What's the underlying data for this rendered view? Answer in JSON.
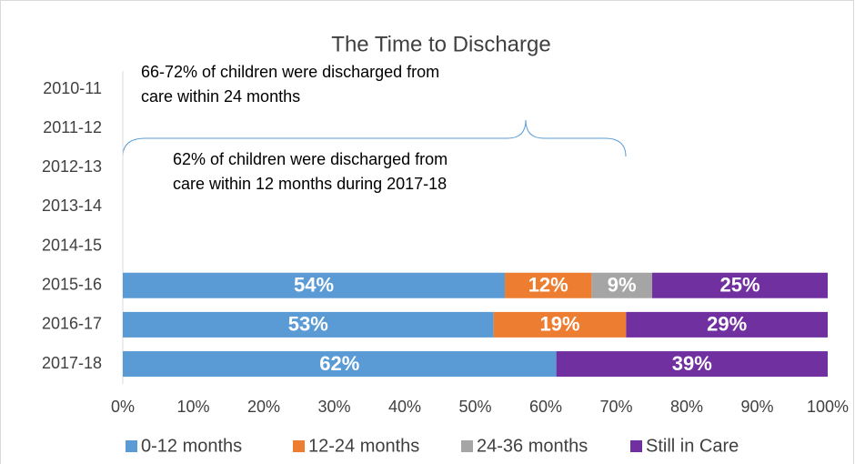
{
  "chart_data": {
    "type": "bar",
    "orientation": "horizontal",
    "stacked": true,
    "title": "The Time to Discharge",
    "categories": [
      "2010-11",
      "2011-12",
      "2012-13",
      "2013-14",
      "2014-15",
      "2015-16",
      "2016-17",
      "2017-18"
    ],
    "series": [
      {
        "name": "0-12 months",
        "color": "#5b9bd5",
        "values": [
          null,
          null,
          null,
          null,
          null,
          54.2,
          52.6,
          61.5
        ],
        "value_labels": [
          null,
          null,
          null,
          null,
          null,
          "54%",
          "53%",
          "62%"
        ]
      },
      {
        "name": "12-24 months",
        "color": "#ed7d31",
        "values": [
          null,
          null,
          null,
          null,
          null,
          12.3,
          18.8,
          null
        ],
        "value_labels": [
          null,
          null,
          null,
          null,
          null,
          "12%",
          "19%",
          null
        ]
      },
      {
        "name": "24-36 months",
        "color": "#a5a5a5",
        "values": [
          null,
          null,
          null,
          null,
          null,
          8.6,
          null,
          null
        ],
        "value_labels": [
          null,
          null,
          null,
          null,
          null,
          "9%",
          null,
          null
        ]
      },
      {
        "name": "Still in Care",
        "color": "#7030a0",
        "values": [
          null,
          null,
          null,
          null,
          null,
          24.9,
          28.6,
          38.5
        ],
        "value_labels": [
          null,
          null,
          null,
          null,
          null,
          "25%",
          "29%",
          "39%"
        ]
      }
    ],
    "xlim": [
      0,
      100
    ],
    "xticks": [
      {
        "value": 0,
        "label": "0%"
      },
      {
        "value": 10,
        "label": "10%"
      },
      {
        "value": 20,
        "label": "20%"
      },
      {
        "value": 30,
        "label": "30%"
      },
      {
        "value": 40,
        "label": "40%"
      },
      {
        "value": 50,
        "label": "50%"
      },
      {
        "value": 60,
        "label": "60%"
      },
      {
        "value": 70,
        "label": "70%"
      },
      {
        "value": 80,
        "label": "80%"
      },
      {
        "value": 90,
        "label": "90%"
      },
      {
        "value": 100,
        "label": "100%"
      }
    ],
    "legend": "bottom",
    "annotations": [
      {
        "lines": [
          "66-72% of children were discharged from",
          "care within 24 months"
        ]
      },
      {
        "lines": [
          "62% of children were discharged from",
          "care within 12 months during 2017-18"
        ]
      }
    ]
  }
}
